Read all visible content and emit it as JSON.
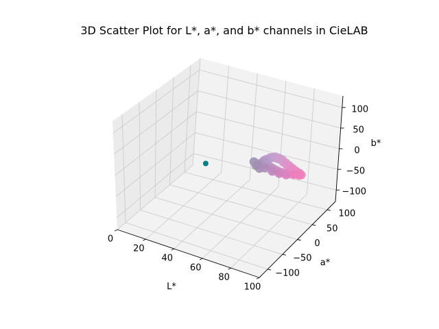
{
  "chart_data": {
    "type": "scatter",
    "projection": "3d",
    "title": "3D Scatter Plot for L*, a*, and b* channels in CieLAB",
    "xlabel": "L*",
    "ylabel": "a*",
    "zlabel": "b*",
    "xlim": [
      0,
      100
    ],
    "ylim": [
      -128,
      128
    ],
    "zlim": [
      -128,
      128
    ],
    "xticks": [
      0,
      20,
      40,
      60,
      80,
      100
    ],
    "yticks": [
      -100,
      -50,
      0,
      50,
      100
    ],
    "zticks": [
      -100,
      -50,
      0,
      50,
      100
    ],
    "xtick_labels": [
      "0",
      "20",
      "40",
      "60",
      "80",
      "100"
    ],
    "ytick_labels": [
      "−100",
      "−50",
      "0",
      "50",
      "100"
    ],
    "ztick_labels": [
      "−100",
      "−50",
      "0",
      "50",
      "100"
    ],
    "grid": true,
    "series": [
      {
        "color_note": "outlier point",
        "color": "#008080",
        "points": [
          {
            "L": 48,
            "a": -60,
            "b": 36
          }
        ]
      },
      {
        "color_note": "pink-lavender cluster",
        "points": [
          {
            "L": 68,
            "a": 22,
            "b": 5,
            "color": "#a993bb"
          },
          {
            "L": 70,
            "a": 24,
            "b": 12,
            "color": "#ad97c0"
          },
          {
            "L": 72,
            "a": 22,
            "b": 18,
            "color": "#b79ccc"
          },
          {
            "L": 74,
            "a": 25,
            "b": 22,
            "color": "#c09dd1"
          },
          {
            "L": 76,
            "a": 26,
            "b": 24,
            "color": "#c6a0d2"
          },
          {
            "L": 78,
            "a": 28,
            "b": 22,
            "color": "#cc9fd2"
          },
          {
            "L": 80,
            "a": 30,
            "b": 20,
            "color": "#d29bd0"
          },
          {
            "L": 82,
            "a": 32,
            "b": 14,
            "color": "#d894cc"
          },
          {
            "L": 84,
            "a": 34,
            "b": 8,
            "color": "#dd8ec8"
          },
          {
            "L": 86,
            "a": 36,
            "b": 2,
            "color": "#e388c4"
          },
          {
            "L": 88,
            "a": 38,
            "b": -4,
            "color": "#e885c2"
          },
          {
            "L": 90,
            "a": 40,
            "b": -10,
            "color": "#ec82bf"
          },
          {
            "L": 66,
            "a": 18,
            "b": 0,
            "color": "#a08fb2"
          },
          {
            "L": 68,
            "a": 20,
            "b": -6,
            "color": "#a48fb4"
          },
          {
            "L": 72,
            "a": 26,
            "b": 2,
            "color": "#b293c0"
          },
          {
            "L": 74,
            "a": 30,
            "b": -4,
            "color": "#bb90c0"
          },
          {
            "L": 76,
            "a": 32,
            "b": -8,
            "color": "#c38ec1"
          },
          {
            "L": 78,
            "a": 34,
            "b": -12,
            "color": "#cb8bc2"
          },
          {
            "L": 80,
            "a": 36,
            "b": -14,
            "color": "#d488c3"
          },
          {
            "L": 82,
            "a": 38,
            "b": -16,
            "color": "#dc86c3"
          },
          {
            "L": 84,
            "a": 40,
            "b": -14,
            "color": "#e384c2"
          },
          {
            "L": 86,
            "a": 42,
            "b": -12,
            "color": "#e983c1"
          },
          {
            "L": 88,
            "a": 44,
            "b": -16,
            "color": "#ee80be"
          },
          {
            "L": 92,
            "a": 44,
            "b": -14,
            "color": "#f07fbc"
          },
          {
            "L": 70,
            "a": 16,
            "b": 8,
            "color": "#a595b8"
          },
          {
            "L": 72,
            "a": 18,
            "b": 14,
            "color": "#ad98bf"
          },
          {
            "L": 74,
            "a": 20,
            "b": 20,
            "color": "#b59bc6"
          },
          {
            "L": 76,
            "a": 22,
            "b": 26,
            "color": "#bd9dcb"
          },
          {
            "L": 78,
            "a": 24,
            "b": 28,
            "color": "#c5a0cf"
          },
          {
            "L": 80,
            "a": 26,
            "b": 26,
            "color": "#cc9ecf"
          },
          {
            "L": 82,
            "a": 28,
            "b": 22,
            "color": "#d39acd"
          },
          {
            "L": 84,
            "a": 30,
            "b": 16,
            "color": "#da95ca"
          },
          {
            "L": 86,
            "a": 32,
            "b": 10,
            "color": "#e090c7"
          },
          {
            "L": 88,
            "a": 34,
            "b": 4,
            "color": "#e58bc4"
          },
          {
            "L": 90,
            "a": 36,
            "b": -2,
            "color": "#ea87c1"
          },
          {
            "L": 92,
            "a": 38,
            "b": -6,
            "color": "#ee84bf"
          },
          {
            "L": 64,
            "a": 20,
            "b": 6,
            "color": "#9f90b0"
          },
          {
            "L": 66,
            "a": 24,
            "b": -2,
            "color": "#a38eb3"
          },
          {
            "L": 70,
            "a": 28,
            "b": -8,
            "color": "#ae8bb8"
          },
          {
            "L": 74,
            "a": 34,
            "b": -16,
            "color": "#bf87bb"
          },
          {
            "L": 78,
            "a": 38,
            "b": -20,
            "color": "#cd84bd"
          },
          {
            "L": 82,
            "a": 42,
            "b": -22,
            "color": "#da82be"
          },
          {
            "L": 86,
            "a": 46,
            "b": -20,
            "color": "#e680be"
          },
          {
            "L": 90,
            "a": 46,
            "b": -18,
            "color": "#ef7fbc"
          }
        ]
      }
    ]
  }
}
